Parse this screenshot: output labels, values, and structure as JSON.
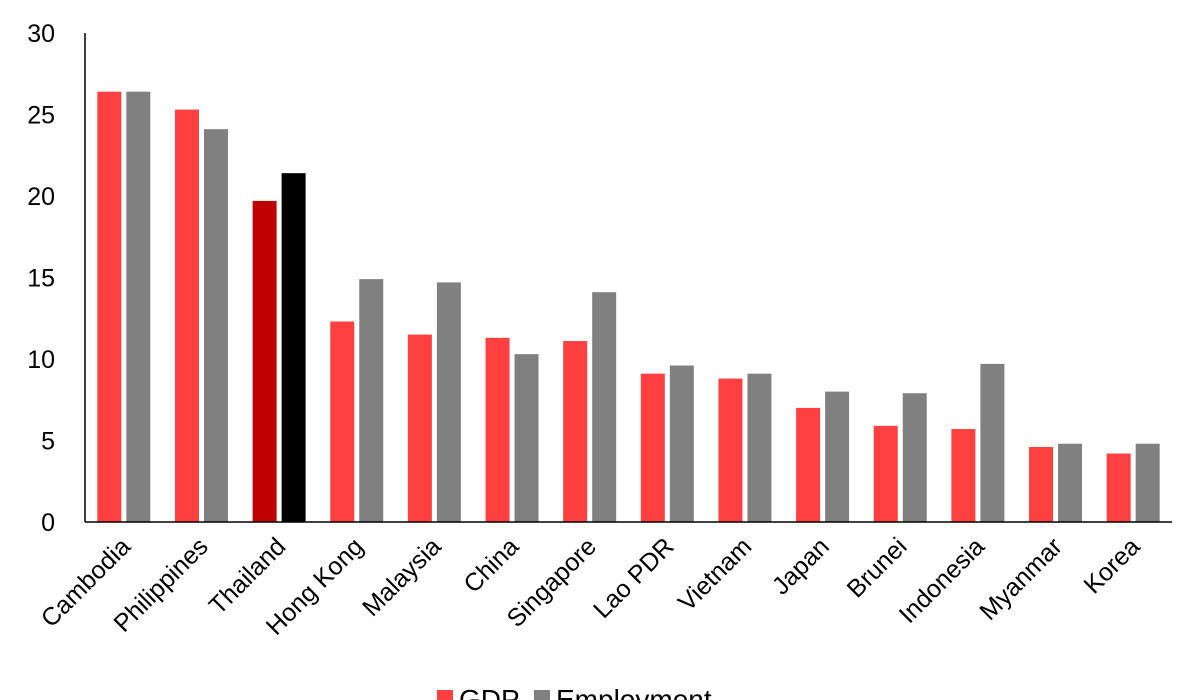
{
  "chart_data": {
    "type": "bar",
    "categories": [
      "Cambodia",
      "Philippines",
      "Thailand",
      "Hong Kong",
      "Malaysia",
      "China",
      "Singapore",
      "Lao PDR",
      "Vietnam",
      "Japan",
      "Brunei",
      "Indonesia",
      "Myanmar",
      "Korea"
    ],
    "series": [
      {
        "name": "GDP",
        "color": "#ff4040",
        "values": [
          26.4,
          25.3,
          19.7,
          12.3,
          11.5,
          11.3,
          11.1,
          9.1,
          8.8,
          7.0,
          5.9,
          5.7,
          4.6,
          4.2
        ]
      },
      {
        "name": "Employment",
        "color": "#808080",
        "values": [
          26.4,
          24.1,
          21.4,
          14.9,
          14.7,
          10.3,
          14.1,
          9.6,
          9.1,
          8.0,
          7.9,
          9.7,
          4.8,
          4.8
        ]
      }
    ],
    "highlight": {
      "category": "Thailand",
      "colors": [
        "#c00000",
        "#000000"
      ]
    },
    "ylim": [
      0,
      30
    ],
    "yticks": [
      0,
      5,
      10,
      15,
      20,
      25,
      30
    ],
    "grid": false,
    "legend": "bottom"
  }
}
